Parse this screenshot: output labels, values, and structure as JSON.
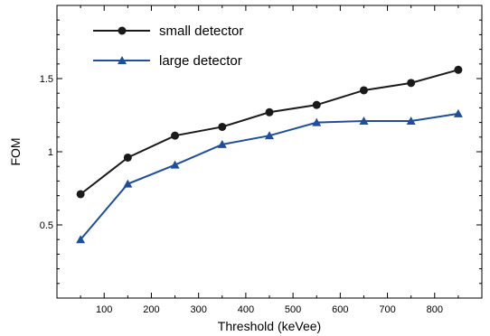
{
  "chart_data": {
    "type": "line",
    "title": "",
    "xlabel": "Threshold (keVee)",
    "ylabel": "FOM",
    "xlim": [
      0,
      900
    ],
    "ylim": [
      0,
      2
    ],
    "x_ticks": [
      100,
      200,
      300,
      400,
      500,
      600,
      700,
      800
    ],
    "x_tick_labels": [
      "100",
      "200",
      "300",
      "400",
      "500",
      "600",
      "700",
      "800"
    ],
    "y_ticks": [
      0.5,
      1,
      1.5
    ],
    "y_tick_labels": [
      "0.5",
      "1",
      "1.5"
    ],
    "grid": false,
    "legend_position": "top-left",
    "x": [
      50,
      150,
      250,
      350,
      450,
      550,
      650,
      750,
      850
    ],
    "series": [
      {
        "name": "small detector",
        "values": [
          0.71,
          0.96,
          1.11,
          1.17,
          1.27,
          1.32,
          1.42,
          1.47,
          1.56
        ],
        "color": "#1a1a1a",
        "marker": "circle"
      },
      {
        "name": "large detector",
        "values": [
          0.4,
          0.78,
          0.91,
          1.05,
          1.11,
          1.2,
          1.21,
          1.21,
          1.26
        ],
        "color": "#1f4e9c",
        "marker": "triangle"
      }
    ]
  }
}
